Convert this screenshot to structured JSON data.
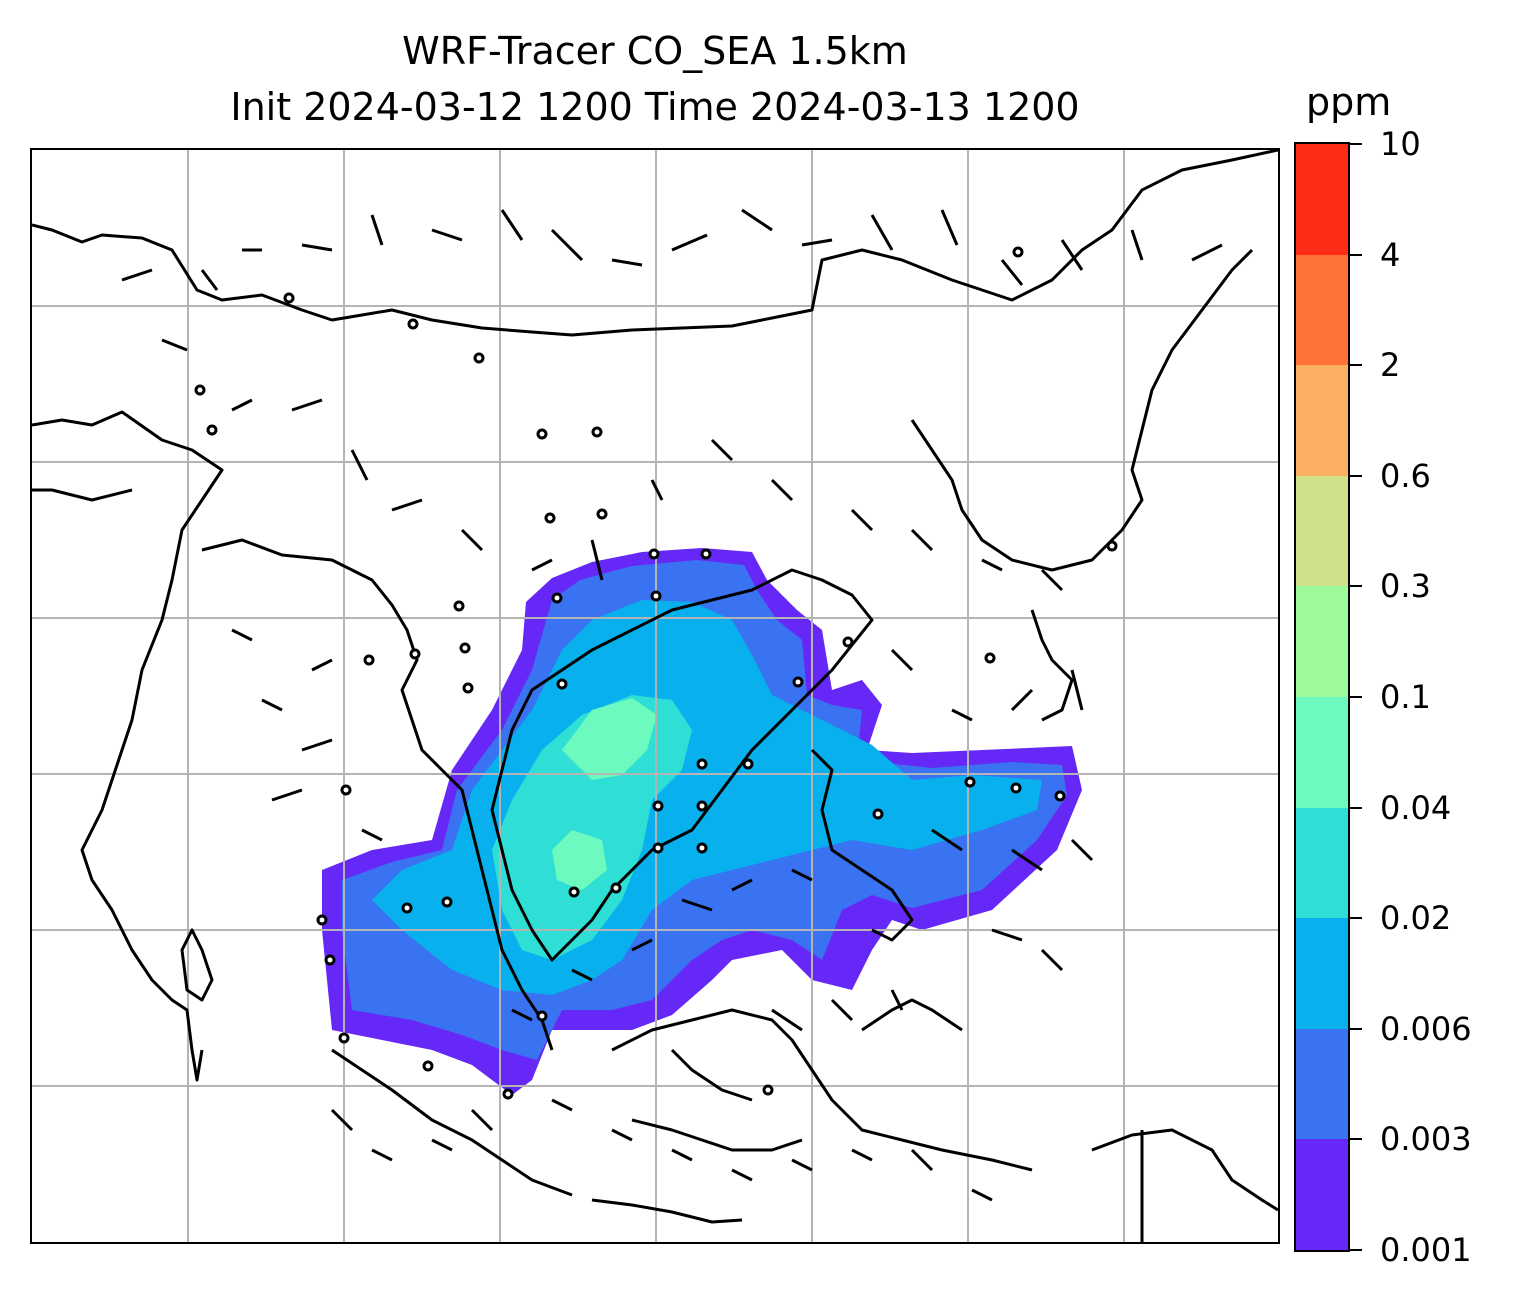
{
  "title_line1": "WRF-Tracer CO_SEA 1.5km",
  "title_line2": "Init 2024-03-12 1200 Time 2024-03-13 1200",
  "colorbar": {
    "unit": "ppm",
    "levels": [
      "0.001",
      "0.003",
      "0.006",
      "0.02",
      "0.04",
      "0.1",
      "0.3",
      "0.6",
      "2",
      "4",
      "10"
    ],
    "colors": [
      "#6528f7",
      "#3a73f2",
      "#08b0ed",
      "#2fdfd6",
      "#6cfabe",
      "#9cf99c",
      "#cfe28a",
      "#fdb061",
      "#fe7236",
      "#ff2d18"
    ]
  },
  "map": {
    "gridlines": true,
    "tracer_colors": {
      "outer": "#6528f7",
      "low": "#3a73f2",
      "mid": "#08b0ed",
      "high": "#2fdfd6",
      "peak": "#6cfabe"
    }
  }
}
